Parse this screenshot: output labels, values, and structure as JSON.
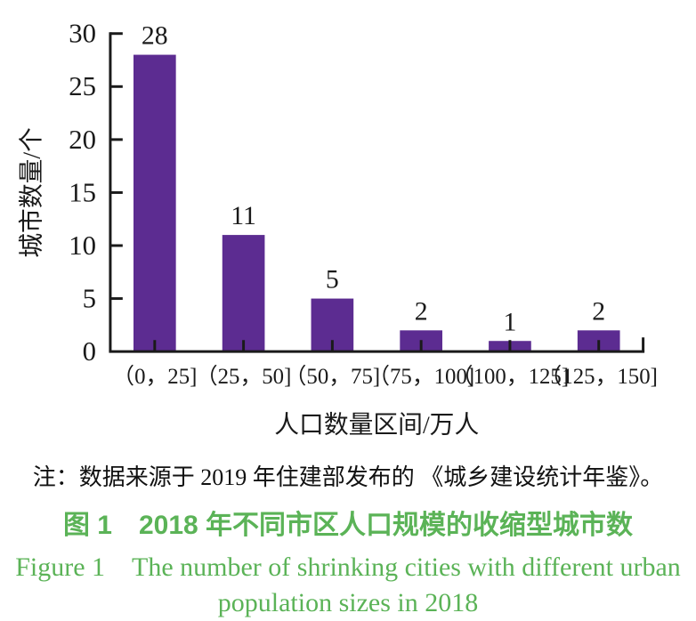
{
  "chart_data": {
    "type": "bar",
    "categories": [
      "（0，25]",
      "（25，50]",
      "（50，75]",
      "（75，100]",
      "（100，125]",
      "（125，150]"
    ],
    "values": [
      28,
      11,
      5,
      2,
      1,
      2
    ],
    "value_labels": [
      "28",
      "11",
      "5",
      "2",
      "1",
      "2"
    ],
    "xlabel": "人口数量区间/万人",
    "ylabel": "城市数量/个",
    "ylim": [
      0,
      30
    ],
    "ytick_step": 5,
    "yticks": [
      0,
      5,
      10,
      15,
      20,
      25,
      30
    ],
    "grid": false,
    "legend": false,
    "bar_color": "#5c2c91",
    "axis_color": "#1a1a1a"
  },
  "note": {
    "text": "注：数据来源于 2019 年住建部发布的 《城乡建设统计年鉴》。"
  },
  "caption": {
    "zh": "图 1　2018 年不同市区人口规模的收缩型城市数",
    "en_line1": "Figure 1　The number of shrinking cities with different urban",
    "en_line2": "population sizes in 2018",
    "color": "#5bb357"
  }
}
